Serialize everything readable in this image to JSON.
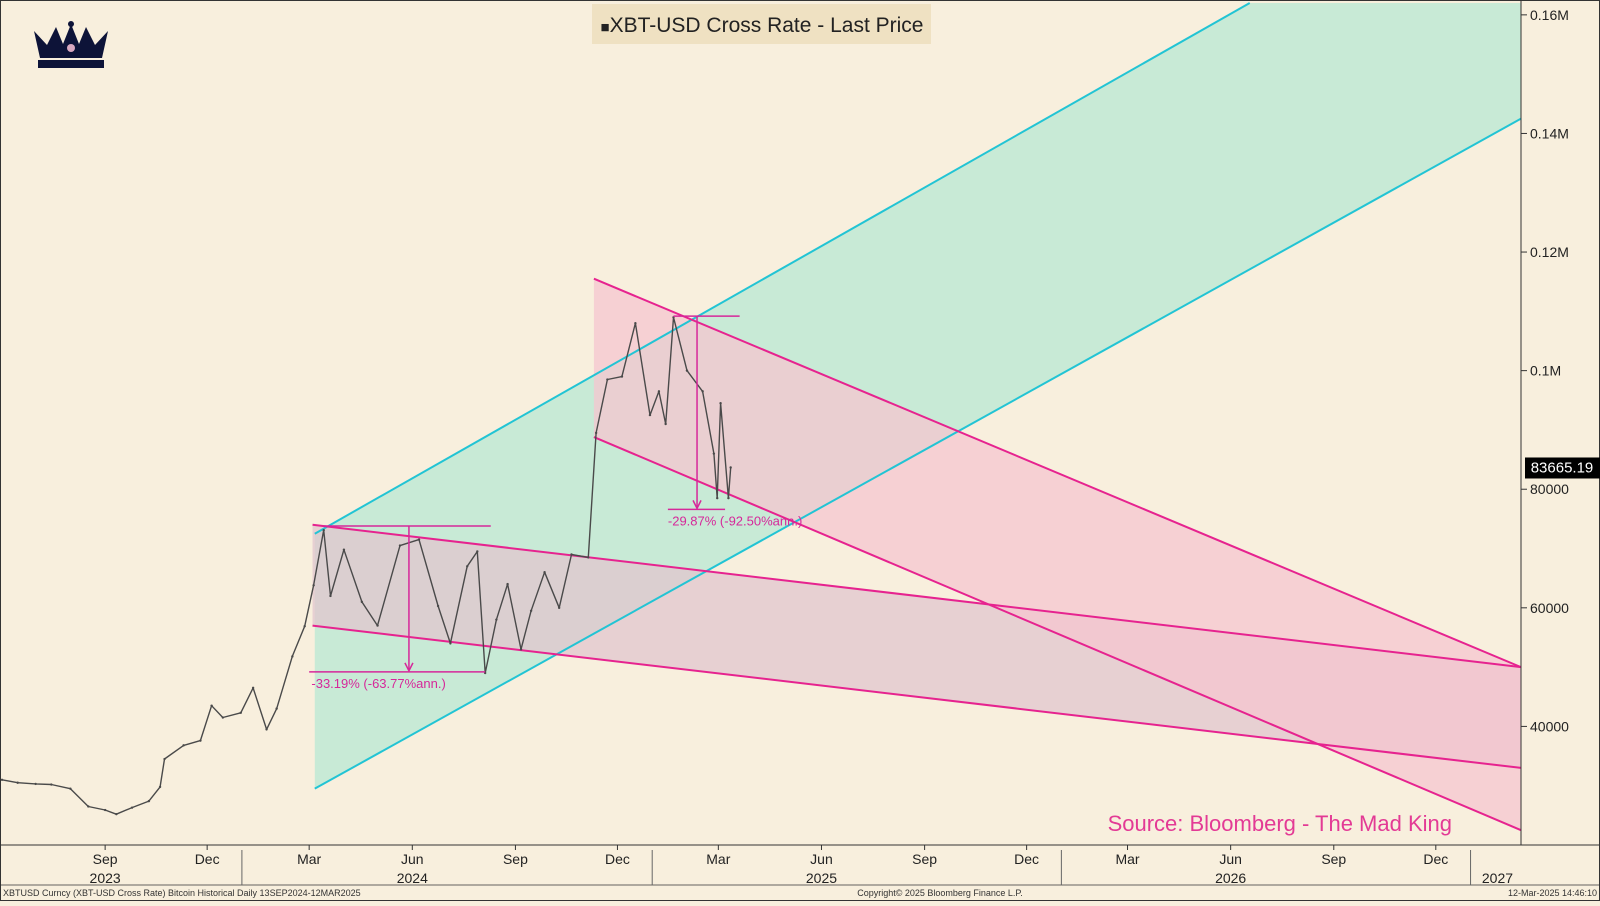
{
  "chart_data": {
    "type": "line",
    "title": "XBT-USD Cross Rate - Last Price",
    "title_marker": "■",
    "source": "Source: Bloomberg - The Mad King",
    "footer_left": "XBTUSD Curncy (XBT-USD Cross Rate) Bitcoin Historical   Daily 13SEP2024-12MAR2025",
    "footer_center": "Copyright© 2025 Bloomberg Finance L.P.",
    "footer_right": "12-Mar-2025 14:46:10",
    "last_price_label": "83665.19",
    "last_price": 83665.19,
    "x_range": [
      "2023-06-01",
      "2027-02-15"
    ],
    "y_range": [
      20000,
      162000
    ],
    "y_ticks": [
      {
        "value": 40000,
        "label": "40000"
      },
      {
        "value": 60000,
        "label": "60000"
      },
      {
        "value": 80000,
        "label": "80000"
      },
      {
        "value": 100000,
        "label": "0.1M"
      },
      {
        "value": 120000,
        "label": "0.12M"
      },
      {
        "value": 140000,
        "label": "0.14M"
      },
      {
        "value": 160000,
        "label": "0.16M"
      }
    ],
    "x_ticks": [
      {
        "date": "2023-09-01",
        "label": "Sep"
      },
      {
        "date": "2023-12-01",
        "label": "Dec"
      },
      {
        "date": "2024-03-01",
        "label": "Mar"
      },
      {
        "date": "2024-06-01",
        "label": "Jun"
      },
      {
        "date": "2024-09-01",
        "label": "Sep"
      },
      {
        "date": "2024-12-01",
        "label": "Dec"
      },
      {
        "date": "2025-03-01",
        "label": "Mar"
      },
      {
        "date": "2025-06-01",
        "label": "Jun"
      },
      {
        "date": "2025-09-01",
        "label": "Sep"
      },
      {
        "date": "2025-12-01",
        "label": "Dec"
      },
      {
        "date": "2026-03-01",
        "label": "Mar"
      },
      {
        "date": "2026-06-01",
        "label": "Jun"
      },
      {
        "date": "2026-09-01",
        "label": "Sep"
      },
      {
        "date": "2026-12-01",
        "label": "Dec"
      }
    ],
    "year_labels": [
      {
        "date": "2023-09-01",
        "label": "2023"
      },
      {
        "date": "2024-06-01",
        "label": "2024"
      },
      {
        "date": "2025-06-01",
        "label": "2025"
      },
      {
        "date": "2026-06-01",
        "label": "2026"
      },
      {
        "date": "2027-01-25",
        "label": "2027"
      }
    ],
    "year_separators": [
      "2024-01-01",
      "2025-01-01",
      "2026-01-01",
      "2027-01-01"
    ],
    "series": [
      {
        "color": "#4a4a4a",
        "points": [
          [
            "2023-06-01",
            31000
          ],
          [
            "2023-06-15",
            30500
          ],
          [
            "2023-07-01",
            30300
          ],
          [
            "2023-07-15",
            30200
          ],
          [
            "2023-08-01",
            29500
          ],
          [
            "2023-08-17",
            26500
          ],
          [
            "2023-09-01",
            25900
          ],
          [
            "2023-09-11",
            25200
          ],
          [
            "2023-09-25",
            26300
          ],
          [
            "2023-10-10",
            27400
          ],
          [
            "2023-10-20",
            29800
          ],
          [
            "2023-10-24",
            34500
          ],
          [
            "2023-11-10",
            36800
          ],
          [
            "2023-11-25",
            37600
          ],
          [
            "2023-12-05",
            43500
          ],
          [
            "2023-12-15",
            41500
          ],
          [
            "2023-12-31",
            42300
          ],
          [
            "2024-01-11",
            46500
          ],
          [
            "2024-01-23",
            39500
          ],
          [
            "2024-02-01",
            43000
          ],
          [
            "2024-02-15",
            51800
          ],
          [
            "2024-02-26",
            56900
          ],
          [
            "2024-03-05",
            63800
          ],
          [
            "2024-03-14",
            73100
          ],
          [
            "2024-03-20",
            62000
          ],
          [
            "2024-04-01",
            69800
          ],
          [
            "2024-04-17",
            61000
          ],
          [
            "2024-05-01",
            57000
          ],
          [
            "2024-05-21",
            70500
          ],
          [
            "2024-06-07",
            71500
          ],
          [
            "2024-06-24",
            60300
          ],
          [
            "2024-07-05",
            54000
          ],
          [
            "2024-07-20",
            67000
          ],
          [
            "2024-07-29",
            69500
          ],
          [
            "2024-08-05",
            49000
          ],
          [
            "2024-08-15",
            58000
          ],
          [
            "2024-08-25",
            64000
          ],
          [
            "2024-09-06",
            53000
          ],
          [
            "2024-09-15",
            59500
          ],
          [
            "2024-09-27",
            66000
          ],
          [
            "2024-10-10",
            60000
          ],
          [
            "2024-10-21",
            69000
          ],
          [
            "2024-11-05",
            68500
          ],
          [
            "2024-11-12",
            89500
          ],
          [
            "2024-11-22",
            98500
          ],
          [
            "2024-12-05",
            99000
          ],
          [
            "2024-12-17",
            108000
          ],
          [
            "2024-12-30",
            92500
          ],
          [
            "2025-01-07",
            96500
          ],
          [
            "2025-01-13",
            91000
          ],
          [
            "2025-01-20",
            109000
          ],
          [
            "2025-02-01",
            100000
          ],
          [
            "2025-02-15",
            96500
          ],
          [
            "2025-02-25",
            86000
          ],
          [
            "2025-02-28",
            78500
          ],
          [
            "2025-03-03",
            94500
          ],
          [
            "2025-03-10",
            78500
          ],
          [
            "2025-03-12",
            83665
          ]
        ]
      }
    ],
    "channels": [
      {
        "name": "",
        "color": "#22c4d4",
        "fill": "#c8ead6",
        "upper": [
          [
            "2024-03-06",
            72500
          ],
          [
            "2026-06-18",
            162000
          ]
        ],
        "lower": [
          [
            "2024-03-06",
            29500
          ],
          [
            "2027-02-15",
            142500
          ]
        ]
      },
      {
        "name": "",
        "color": "#e6238f",
        "fill": "#e2c6cd",
        "upper": [
          [
            "2024-03-04",
            74000
          ],
          [
            "2027-02-15",
            50000
          ]
        ],
        "lower": [
          [
            "2024-03-04",
            57000
          ],
          [
            "2027-02-15",
            33000
          ]
        ]
      },
      {
        "name": "",
        "color": "#e6238f",
        "fill": "#f6c6cf",
        "upper": [
          [
            "2024-11-10",
            115500
          ],
          [
            "2027-02-15",
            50000
          ]
        ],
        "lower": [
          [
            "2024-11-10",
            88800
          ],
          [
            "2027-02-15",
            22500
          ]
        ]
      }
    ],
    "annotations": [
      {
        "text": "-33.19% (-63.77%ann.)",
        "top_from": [
          "2024-03-14",
          "2024-08-10"
        ],
        "top": 73800,
        "bottom_from": [
          "2024-03-01",
          "2024-08-05"
        ],
        "bottom": 49200,
        "arrow_date": "2024-05-29",
        "label_date": "2024-03-03",
        "label_value": 47300
      },
      {
        "text": "-29.87% (-92.50%ann.)",
        "top_from": [
          "2025-01-20",
          "2025-03-20"
        ],
        "top": 109200,
        "bottom_from": [
          "2025-01-15",
          "2025-03-07"
        ],
        "bottom": 76600,
        "arrow_date": "2025-02-10",
        "label_date": "2025-01-15",
        "label_value": 74700
      }
    ]
  }
}
